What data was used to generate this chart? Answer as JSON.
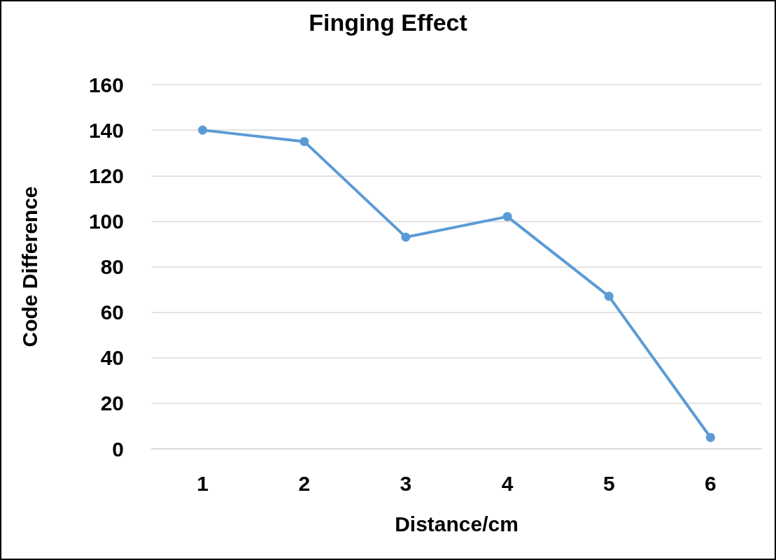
{
  "chart_data": {
    "type": "line",
    "title": "Finging Effect",
    "xlabel": "Distance/cm",
    "ylabel": "Code Difference",
    "categories": [
      "1",
      "2",
      "3",
      "4",
      "5",
      "6"
    ],
    "series": [
      {
        "color": "#5b9bd5",
        "values": [
          140,
          135,
          93,
          102,
          67,
          5
        ]
      }
    ],
    "ylim": [
      0,
      160
    ],
    "yticks": [
      0,
      20,
      40,
      60,
      80,
      100,
      120,
      140,
      160
    ],
    "grid": "y",
    "marker": "circle",
    "line_style": "solid"
  }
}
